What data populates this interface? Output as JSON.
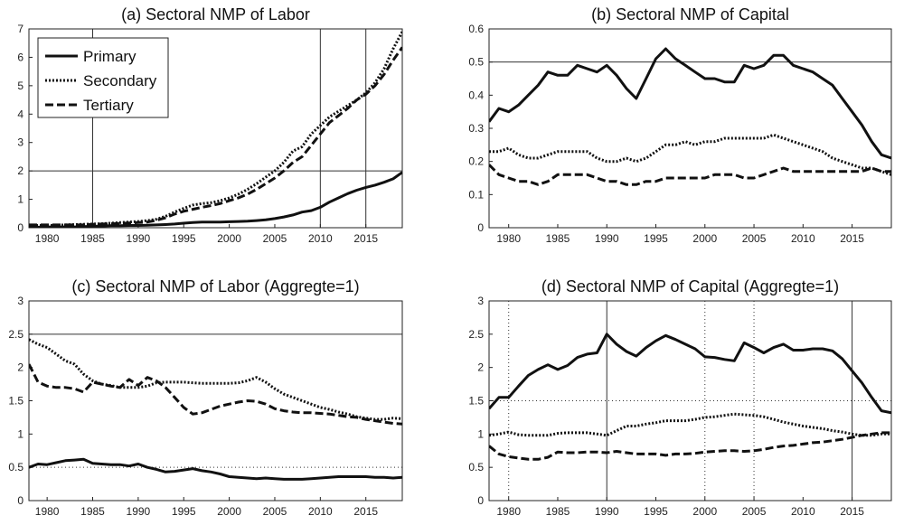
{
  "chart_data": [
    {
      "type": "line",
      "title": "(a) Sectoral NMP of Labor",
      "xlabel": "",
      "ylabel": "",
      "xlim": [
        1978,
        2019
      ],
      "ylim": [
        0,
        7
      ],
      "xticks": [
        1980,
        1985,
        1990,
        1995,
        2000,
        2005,
        2010,
        2015
      ],
      "yticks": [
        0,
        1,
        2,
        3,
        4,
        5,
        6,
        7
      ],
      "grid": false,
      "refs": [
        {
          "axis": "x",
          "value": 1985,
          "style": "solid"
        },
        {
          "axis": "x",
          "value": 2010,
          "style": "solid"
        },
        {
          "axis": "x",
          "value": 2015,
          "style": "solid"
        },
        {
          "axis": "y",
          "value": 2,
          "style": "solid"
        }
      ],
      "legend": {
        "position": "top-left",
        "entries": [
          "Primary",
          "Secondary",
          "Tertiary"
        ]
      },
      "x": [
        1978,
        1979,
        1980,
        1981,
        1982,
        1983,
        1984,
        1985,
        1986,
        1987,
        1988,
        1989,
        1990,
        1991,
        1992,
        1993,
        1994,
        1995,
        1996,
        1997,
        1998,
        1999,
        2000,
        2001,
        2002,
        2003,
        2004,
        2005,
        2006,
        2007,
        2008,
        2009,
        2010,
        2011,
        2012,
        2013,
        2014,
        2015,
        2016,
        2017,
        2018,
        2019
      ],
      "series": [
        {
          "name": "Primary",
          "style": "solid",
          "values": [
            0.02,
            0.02,
            0.03,
            0.03,
            0.03,
            0.03,
            0.04,
            0.05,
            0.06,
            0.07,
            0.07,
            0.08,
            0.08,
            0.09,
            0.1,
            0.11,
            0.13,
            0.16,
            0.18,
            0.2,
            0.2,
            0.2,
            0.21,
            0.22,
            0.23,
            0.25,
            0.28,
            0.32,
            0.38,
            0.45,
            0.55,
            0.6,
            0.72,
            0.9,
            1.05,
            1.2,
            1.32,
            1.42,
            1.5,
            1.6,
            1.72,
            1.95
          ]
        },
        {
          "name": "Secondary",
          "style": "dotted",
          "values": [
            0.08,
            0.08,
            0.08,
            0.09,
            0.1,
            0.11,
            0.12,
            0.13,
            0.14,
            0.16,
            0.18,
            0.2,
            0.22,
            0.25,
            0.3,
            0.4,
            0.55,
            0.68,
            0.8,
            0.85,
            0.88,
            0.95,
            1.05,
            1.18,
            1.35,
            1.55,
            1.78,
            2.0,
            2.3,
            2.7,
            2.85,
            3.3,
            3.6,
            3.9,
            4.1,
            4.3,
            4.5,
            4.75,
            5.1,
            5.6,
            6.3,
            6.9
          ]
        },
        {
          "name": "Tertiary",
          "style": "dashed",
          "values": [
            0.1,
            0.1,
            0.1,
            0.1,
            0.1,
            0.1,
            0.1,
            0.12,
            0.13,
            0.14,
            0.15,
            0.17,
            0.18,
            0.2,
            0.26,
            0.35,
            0.48,
            0.58,
            0.65,
            0.72,
            0.78,
            0.85,
            0.95,
            1.05,
            1.18,
            1.35,
            1.55,
            1.75,
            2.0,
            2.3,
            2.5,
            2.9,
            3.3,
            3.7,
            3.95,
            4.2,
            4.5,
            4.7,
            5.0,
            5.4,
            5.9,
            6.35
          ]
        }
      ]
    },
    {
      "type": "line",
      "title": "(b) Sectoral NMP of Capital",
      "xlabel": "",
      "ylabel": "",
      "xlim": [
        1978,
        2019
      ],
      "ylim": [
        0,
        0.6
      ],
      "xticks": [
        1980,
        1985,
        1990,
        1995,
        2000,
        2005,
        2010,
        2015
      ],
      "yticks": [
        0,
        0.1,
        0.2,
        0.3,
        0.4,
        0.5,
        0.6
      ],
      "grid": false,
      "refs": [
        {
          "axis": "y",
          "value": 0.5,
          "style": "solid"
        }
      ],
      "x": [
        1978,
        1979,
        1980,
        1981,
        1982,
        1983,
        1984,
        1985,
        1986,
        1987,
        1988,
        1989,
        1990,
        1991,
        1992,
        1993,
        1994,
        1995,
        1996,
        1997,
        1998,
        1999,
        2000,
        2001,
        2002,
        2003,
        2004,
        2005,
        2006,
        2007,
        2008,
        2009,
        2010,
        2011,
        2012,
        2013,
        2014,
        2015,
        2016,
        2017,
        2018,
        2019
      ],
      "series": [
        {
          "name": "Primary",
          "style": "solid",
          "values": [
            0.32,
            0.36,
            0.35,
            0.37,
            0.4,
            0.43,
            0.47,
            0.46,
            0.46,
            0.49,
            0.48,
            0.47,
            0.49,
            0.46,
            0.42,
            0.39,
            0.45,
            0.51,
            0.54,
            0.51,
            0.49,
            0.47,
            0.45,
            0.45,
            0.44,
            0.44,
            0.49,
            0.48,
            0.49,
            0.52,
            0.52,
            0.49,
            0.48,
            0.47,
            0.45,
            0.43,
            0.39,
            0.35,
            0.31,
            0.26,
            0.22,
            0.21
          ]
        },
        {
          "name": "Secondary",
          "style": "dotted",
          "values": [
            0.23,
            0.23,
            0.24,
            0.22,
            0.21,
            0.21,
            0.22,
            0.23,
            0.23,
            0.23,
            0.23,
            0.21,
            0.2,
            0.2,
            0.21,
            0.2,
            0.21,
            0.23,
            0.25,
            0.25,
            0.26,
            0.25,
            0.26,
            0.26,
            0.27,
            0.27,
            0.27,
            0.27,
            0.27,
            0.28,
            0.27,
            0.26,
            0.25,
            0.24,
            0.23,
            0.21,
            0.2,
            0.19,
            0.18,
            0.18,
            0.17,
            0.16
          ]
        },
        {
          "name": "Tertiary",
          "style": "dashed",
          "values": [
            0.19,
            0.16,
            0.15,
            0.14,
            0.14,
            0.13,
            0.14,
            0.16,
            0.16,
            0.16,
            0.16,
            0.15,
            0.14,
            0.14,
            0.13,
            0.13,
            0.14,
            0.14,
            0.15,
            0.15,
            0.15,
            0.15,
            0.15,
            0.16,
            0.16,
            0.16,
            0.15,
            0.15,
            0.16,
            0.17,
            0.18,
            0.17,
            0.17,
            0.17,
            0.17,
            0.17,
            0.17,
            0.17,
            0.17,
            0.18,
            0.17,
            0.17
          ]
        }
      ]
    },
    {
      "type": "line",
      "title": "(c) Sectoral NMP of Labor (Aggregte=1)",
      "xlabel": "",
      "ylabel": "",
      "xlim": [
        1978,
        2019
      ],
      "ylim": [
        0,
        3
      ],
      "xticks": [
        1980,
        1985,
        1990,
        1995,
        2000,
        2005,
        2010,
        2015
      ],
      "yticks": [
        0,
        0.5,
        1,
        1.5,
        2,
        2.5,
        3
      ],
      "grid": false,
      "refs": [
        {
          "axis": "y",
          "value": 2.5,
          "style": "solid"
        },
        {
          "axis": "y",
          "value": 0.5,
          "style": "dotted"
        }
      ],
      "x": [
        1978,
        1979,
        1980,
        1981,
        1982,
        1983,
        1984,
        1985,
        1986,
        1987,
        1988,
        1989,
        1990,
        1991,
        1992,
        1993,
        1994,
        1995,
        1996,
        1997,
        1998,
        1999,
        2000,
        2001,
        2002,
        2003,
        2004,
        2005,
        2006,
        2007,
        2008,
        2009,
        2010,
        2011,
        2012,
        2013,
        2014,
        2015,
        2016,
        2017,
        2018,
        2019
      ],
      "series": [
        {
          "name": "Primary",
          "style": "solid",
          "values": [
            0.5,
            0.55,
            0.54,
            0.57,
            0.6,
            0.61,
            0.62,
            0.56,
            0.55,
            0.54,
            0.54,
            0.52,
            0.55,
            0.5,
            0.47,
            0.43,
            0.44,
            0.46,
            0.48,
            0.45,
            0.43,
            0.4,
            0.36,
            0.35,
            0.34,
            0.33,
            0.34,
            0.33,
            0.32,
            0.32,
            0.32,
            0.33,
            0.34,
            0.35,
            0.36,
            0.36,
            0.36,
            0.36,
            0.35,
            0.35,
            0.34,
            0.35
          ]
        },
        {
          "name": "Secondary",
          "style": "dotted",
          "values": [
            2.42,
            2.35,
            2.3,
            2.2,
            2.1,
            2.05,
            1.9,
            1.8,
            1.75,
            1.73,
            1.7,
            1.7,
            1.7,
            1.72,
            1.77,
            1.78,
            1.78,
            1.78,
            1.77,
            1.76,
            1.76,
            1.76,
            1.76,
            1.77,
            1.8,
            1.85,
            1.78,
            1.68,
            1.6,
            1.55,
            1.5,
            1.45,
            1.4,
            1.37,
            1.33,
            1.3,
            1.26,
            1.24,
            1.22,
            1.22,
            1.24,
            1.23
          ]
        },
        {
          "name": "Tertiary",
          "style": "dashed",
          "values": [
            2.05,
            1.78,
            1.72,
            1.7,
            1.7,
            1.68,
            1.63,
            1.78,
            1.75,
            1.72,
            1.7,
            1.82,
            1.73,
            1.85,
            1.8,
            1.7,
            1.55,
            1.4,
            1.3,
            1.32,
            1.37,
            1.42,
            1.45,
            1.48,
            1.5,
            1.49,
            1.45,
            1.38,
            1.35,
            1.33,
            1.32,
            1.32,
            1.31,
            1.3,
            1.28,
            1.26,
            1.25,
            1.22,
            1.2,
            1.18,
            1.16,
            1.15
          ]
        }
      ]
    },
    {
      "type": "line",
      "title": "(d) Sectoral NMP of Capital (Aggregte=1)",
      "xlabel": "",
      "ylabel": "",
      "xlim": [
        1978,
        2019
      ],
      "ylim": [
        0,
        3
      ],
      "xticks": [
        1980,
        1985,
        1990,
        1995,
        2000,
        2005,
        2010,
        2015
      ],
      "yticks": [
        0,
        0.5,
        1,
        1.5,
        2,
        2.5,
        3
      ],
      "grid": false,
      "refs": [
        {
          "axis": "x",
          "value": 1980,
          "style": "dotted"
        },
        {
          "axis": "x",
          "value": 1990,
          "style": "solid"
        },
        {
          "axis": "x",
          "value": 2000,
          "style": "dotted"
        },
        {
          "axis": "x",
          "value": 2005,
          "style": "dotted"
        },
        {
          "axis": "x",
          "value": 2015,
          "style": "solid"
        },
        {
          "axis": "y",
          "value": 1.5,
          "style": "dotted"
        }
      ],
      "x": [
        1978,
        1979,
        1980,
        1981,
        1982,
        1983,
        1984,
        1985,
        1986,
        1987,
        1988,
        1989,
        1990,
        1991,
        1992,
        1993,
        1994,
        1995,
        1996,
        1997,
        1998,
        1999,
        2000,
        2001,
        2002,
        2003,
        2004,
        2005,
        2006,
        2007,
        2008,
        2009,
        2010,
        2011,
        2012,
        2013,
        2014,
        2015,
        2016,
        2017,
        2018,
        2019
      ],
      "series": [
        {
          "name": "Primary",
          "style": "solid",
          "values": [
            1.38,
            1.55,
            1.55,
            1.72,
            1.88,
            1.97,
            2.04,
            1.97,
            2.03,
            2.15,
            2.2,
            2.22,
            2.5,
            2.35,
            2.24,
            2.17,
            2.3,
            2.4,
            2.48,
            2.42,
            2.35,
            2.28,
            2.16,
            2.15,
            2.12,
            2.1,
            2.37,
            2.3,
            2.22,
            2.3,
            2.35,
            2.26,
            2.26,
            2.28,
            2.28,
            2.25,
            2.13,
            1.95,
            1.77,
            1.55,
            1.35,
            1.32
          ]
        },
        {
          "name": "Secondary",
          "style": "dotted",
          "values": [
            0.98,
            1.0,
            1.03,
            0.99,
            0.98,
            0.98,
            0.98,
            1.01,
            1.02,
            1.02,
            1.02,
            1.0,
            0.98,
            1.05,
            1.12,
            1.12,
            1.15,
            1.17,
            1.2,
            1.2,
            1.2,
            1.22,
            1.25,
            1.26,
            1.28,
            1.3,
            1.29,
            1.28,
            1.26,
            1.22,
            1.18,
            1.15,
            1.12,
            1.1,
            1.08,
            1.05,
            1.03,
            1.0,
            0.98,
            0.98,
            1.0,
            1.0
          ]
        },
        {
          "name": "Tertiary",
          "style": "dashed",
          "values": [
            0.82,
            0.7,
            0.66,
            0.64,
            0.62,
            0.62,
            0.65,
            0.73,
            0.72,
            0.72,
            0.73,
            0.73,
            0.72,
            0.74,
            0.72,
            0.7,
            0.7,
            0.7,
            0.68,
            0.7,
            0.7,
            0.71,
            0.73,
            0.74,
            0.75,
            0.75,
            0.74,
            0.75,
            0.77,
            0.8,
            0.82,
            0.83,
            0.85,
            0.87,
            0.88,
            0.9,
            0.92,
            0.95,
            0.98,
            1.0,
            1.02,
            1.02
          ]
        }
      ]
    }
  ]
}
